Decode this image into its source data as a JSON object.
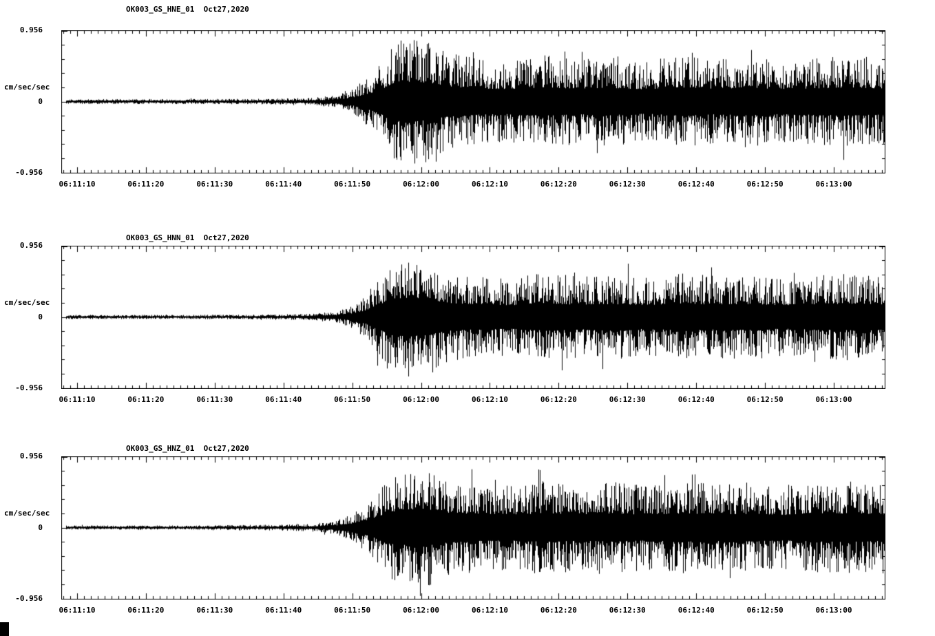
{
  "page": {
    "background_color": "#ffffff",
    "trace_color": "#000000"
  },
  "chart_data": [
    {
      "type": "line",
      "subtype": "seismogram",
      "title": "OK003_GS_HNE_01  Oct27,2020",
      "ylabel": "cm/sec/sec",
      "ylim": [
        -0.956,
        0.956
      ],
      "ytick_labels": {
        "top": "0.956",
        "zero": "0",
        "bottom": "-0.956"
      },
      "xtick_labels": [
        "06:11:10",
        "06:11:20",
        "06:11:30",
        "06:11:40",
        "06:11:50",
        "06:12:00",
        "06:12:10",
        "06:12:20",
        "06:12:30",
        "06:12:40",
        "06:12:50",
        "06:13:00"
      ],
      "x_span_seconds": 119.7,
      "x_first_tick_offset_seconds": 2.3,
      "x_major_tick_interval_seconds": 10,
      "x_minor_tick_interval_seconds": 1,
      "grid": false,
      "legend": false,
      "envelope_t_seconds": [
        0,
        20,
        30,
        36,
        40,
        42,
        44,
        46,
        48,
        50,
        53,
        56,
        60,
        65,
        70,
        75,
        80,
        85,
        90,
        95,
        100,
        105,
        110,
        115,
        120
      ],
      "envelope_amp_fraction": [
        0.035,
        0.035,
        0.04,
        0.05,
        0.09,
        0.16,
        0.3,
        0.5,
        0.8,
        0.93,
        0.88,
        0.7,
        0.62,
        0.58,
        0.66,
        0.6,
        0.63,
        0.57,
        0.66,
        0.6,
        0.64,
        0.58,
        0.62,
        0.65,
        0.6
      ],
      "seed": 101
    },
    {
      "type": "line",
      "subtype": "seismogram",
      "title": "OK003_GS_HNN_01  Oct27,2020",
      "ylabel": "cm/sec/sec",
      "ylim": [
        -0.956,
        0.956
      ],
      "ytick_labels": {
        "top": "0.956",
        "zero": "0",
        "bottom": "-0.956"
      },
      "xtick_labels": [
        "06:11:10",
        "06:11:20",
        "06:11:30",
        "06:11:40",
        "06:11:50",
        "06:12:00",
        "06:12:10",
        "06:12:20",
        "06:12:30",
        "06:12:40",
        "06:12:50",
        "06:13:00"
      ],
      "x_span_seconds": 119.7,
      "x_first_tick_offset_seconds": 2.3,
      "x_major_tick_interval_seconds": 10,
      "x_minor_tick_interval_seconds": 1,
      "grid": false,
      "legend": false,
      "envelope_t_seconds": [
        0,
        20,
        30,
        36,
        40,
        42,
        44,
        46,
        48,
        50,
        53,
        56,
        60,
        65,
        70,
        75,
        80,
        85,
        90,
        95,
        100,
        105,
        110,
        115,
        120
      ],
      "envelope_amp_fraction": [
        0.03,
        0.03,
        0.035,
        0.045,
        0.08,
        0.15,
        0.28,
        0.55,
        0.85,
        0.9,
        0.85,
        0.65,
        0.58,
        0.55,
        0.62,
        0.58,
        0.6,
        0.56,
        0.62,
        0.58,
        0.6,
        0.55,
        0.6,
        0.62,
        0.58
      ],
      "seed": 202
    },
    {
      "type": "line",
      "subtype": "seismogram",
      "title": "OK003_GS_HNZ_01  Oct27,2020",
      "ylabel": "cm/sec/sec",
      "ylim": [
        -0.956,
        0.956
      ],
      "ytick_labels": {
        "top": "0.956",
        "zero": "0",
        "bottom": "-0.956"
      },
      "xtick_labels": [
        "06:11:10",
        "06:11:20",
        "06:11:30",
        "06:11:40",
        "06:11:50",
        "06:12:00",
        "06:12:10",
        "06:12:20",
        "06:12:30",
        "06:12:40",
        "06:12:50",
        "06:13:00"
      ],
      "x_span_seconds": 119.7,
      "x_first_tick_offset_seconds": 2.3,
      "x_major_tick_interval_seconds": 10,
      "x_minor_tick_interval_seconds": 1,
      "grid": false,
      "legend": false,
      "envelope_t_seconds": [
        0,
        20,
        30,
        36,
        40,
        42,
        44,
        46,
        48,
        50,
        53,
        56,
        60,
        65,
        70,
        75,
        80,
        85,
        90,
        95,
        100,
        105,
        110,
        115,
        120
      ],
      "envelope_amp_fraction": [
        0.03,
        0.03,
        0.04,
        0.05,
        0.1,
        0.18,
        0.32,
        0.52,
        0.75,
        0.82,
        0.85,
        0.7,
        0.63,
        0.6,
        0.66,
        0.62,
        0.65,
        0.6,
        0.66,
        0.62,
        0.64,
        0.6,
        0.65,
        0.66,
        0.62
      ],
      "seed": 303
    }
  ]
}
